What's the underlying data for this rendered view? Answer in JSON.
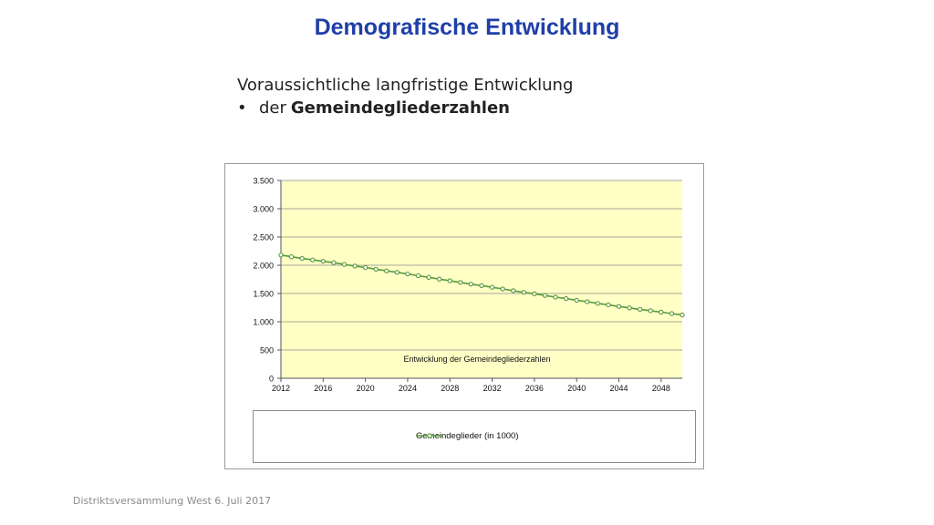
{
  "slide": {
    "title": "Demografische Entwicklung",
    "subtitle": "Voraussichtliche langfristige Entwicklung",
    "bullet": {
      "symbol": "•",
      "text_plain": "der",
      "text_bold": "Gemeindegliederzahlen"
    },
    "footer": "Distriktsversammlung West 6. Juli 2017"
  },
  "colors": {
    "title": "#1f3fa8",
    "plot_background": "#ffffc6",
    "series_line": "#5a9a3c",
    "gridline": "#8c8c8c"
  },
  "chart_data": {
    "type": "line",
    "title": "",
    "annotation": "Entwicklung  der Gemeindegliederzahlen",
    "xlabel": "",
    "ylabel": "",
    "xlim": [
      2012,
      2050
    ],
    "ylim": [
      0,
      3500
    ],
    "x_ticks": [
      2012,
      2016,
      2020,
      2024,
      2028,
      2032,
      2036,
      2040,
      2044,
      2048
    ],
    "x_tick_labels": [
      "2012",
      "2016",
      "2020",
      "2024",
      "2028",
      "2032",
      "2036",
      "2040",
      "2044",
      "2048"
    ],
    "y_ticks": [
      0,
      500,
      1000,
      1500,
      2000,
      2500,
      3000,
      3500
    ],
    "y_tick_labels": [
      "0",
      "500",
      "1.000",
      "1.500",
      "2.000",
      "2.500",
      "3.000",
      "3.500"
    ],
    "grid": "horizontal",
    "legend_position": "bottom",
    "series": [
      {
        "name": "Gemeindeglieder (in 1000)",
        "x": [
          2012,
          2013,
          2014,
          2015,
          2016,
          2017,
          2018,
          2019,
          2020,
          2021,
          2022,
          2023,
          2024,
          2025,
          2026,
          2027,
          2028,
          2029,
          2030,
          2031,
          2032,
          2033,
          2034,
          2035,
          2036,
          2037,
          2038,
          2039,
          2040,
          2041,
          2042,
          2043,
          2044,
          2045,
          2046,
          2047,
          2048,
          2049,
          2050
        ],
        "values": [
          2180,
          2150,
          2120,
          2095,
          2070,
          2045,
          2015,
          1985,
          1960,
          1930,
          1900,
          1875,
          1845,
          1815,
          1785,
          1755,
          1725,
          1695,
          1665,
          1640,
          1610,
          1580,
          1550,
          1520,
          1495,
          1465,
          1435,
          1410,
          1380,
          1355,
          1325,
          1300,
          1270,
          1245,
          1220,
          1195,
          1170,
          1145,
          1120
        ]
      }
    ]
  }
}
